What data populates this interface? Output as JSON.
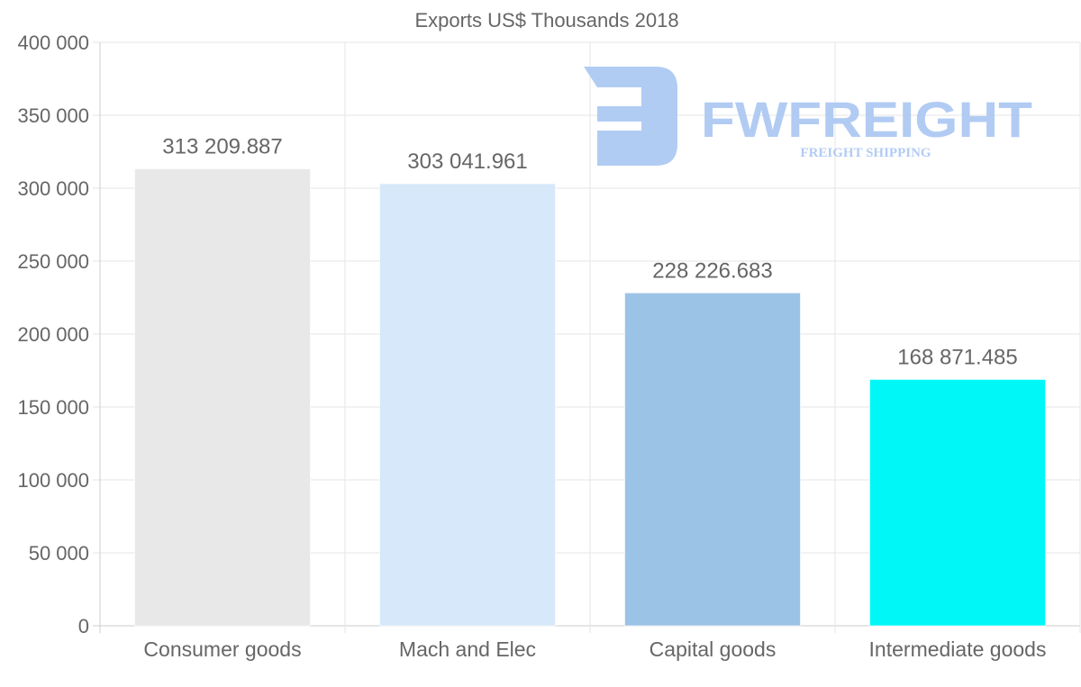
{
  "chart_data": {
    "type": "bar",
    "title": "Exports US$ Thousands 2018",
    "xlabel": "",
    "ylabel": "",
    "categories": [
      "Consumer goods",
      "Mach and Elec",
      "Capital goods",
      "Intermediate goods"
    ],
    "values": [
      313209.887,
      303041.961,
      228226.683,
      168871.485
    ],
    "data_labels": [
      "313 209.887",
      "303 041.961",
      "228 226.683",
      "168 871.485"
    ],
    "colors": [
      "#e8e8e8",
      "#d6e8f9",
      "#9bc3e6",
      "#00f7f7"
    ],
    "ylim": [
      0,
      400000
    ],
    "yticks": [
      0,
      50000,
      100000,
      150000,
      200000,
      250000,
      300000,
      350000,
      400000
    ],
    "ytick_labels": [
      "0",
      "50 000",
      "100 000",
      "150 000",
      "200 000",
      "250 000",
      "300 000",
      "350 000",
      "400 000"
    ],
    "grid": true,
    "legend": "none"
  },
  "watermark": {
    "brand": "FWFREIGHT",
    "tagline": "FREIGHT SHIPPING",
    "color": "#a9c6f2"
  }
}
